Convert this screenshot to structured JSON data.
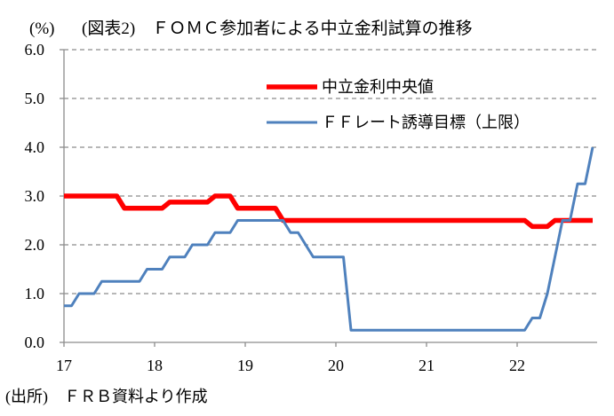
{
  "chart_data": {
    "type": "line",
    "title": "(図表2)　ＦＯＭＣ参加者による中立金利試算の推移",
    "ylabel": "(%)",
    "ylim": [
      0,
      6
    ],
    "yticks": [
      "0.0",
      "1.0",
      "2.0",
      "3.0",
      "4.0",
      "5.0",
      "6.0"
    ],
    "xticks": [
      "17",
      "18",
      "19",
      "20",
      "21",
      "22"
    ],
    "grid": true,
    "legend": "top-center",
    "x": [
      "2017-01",
      "2017-02",
      "2017-03",
      "2017-04",
      "2017-05",
      "2017-06",
      "2017-07",
      "2017-08",
      "2017-09",
      "2017-10",
      "2017-11",
      "2017-12",
      "2018-01",
      "2018-02",
      "2018-03",
      "2018-04",
      "2018-05",
      "2018-06",
      "2018-07",
      "2018-08",
      "2018-09",
      "2018-10",
      "2018-11",
      "2018-12",
      "2019-01",
      "2019-02",
      "2019-03",
      "2019-04",
      "2019-05",
      "2019-06",
      "2019-07",
      "2019-08",
      "2019-09",
      "2019-10",
      "2019-11",
      "2019-12",
      "2020-01",
      "2020-02",
      "2020-03",
      "2020-04",
      "2020-05",
      "2020-06",
      "2020-07",
      "2020-08",
      "2020-09",
      "2020-10",
      "2020-11",
      "2020-12",
      "2021-01",
      "2021-02",
      "2021-03",
      "2021-04",
      "2021-05",
      "2021-06",
      "2021-07",
      "2021-08",
      "2021-09",
      "2021-10",
      "2021-11",
      "2021-12",
      "2022-01",
      "2022-02",
      "2022-03",
      "2022-04",
      "2022-05",
      "2022-06",
      "2022-07",
      "2022-08",
      "2022-09",
      "2022-10",
      "2022-11"
    ],
    "series": [
      {
        "name": "中立金利中央値",
        "color": "#FF0000",
        "values": [
          3.0,
          3.0,
          3.0,
          3.0,
          3.0,
          3.0,
          3.0,
          3.0,
          2.75,
          2.75,
          2.75,
          2.75,
          2.75,
          2.75,
          2.875,
          2.875,
          2.875,
          2.875,
          2.875,
          2.875,
          3.0,
          3.0,
          3.0,
          2.75,
          2.75,
          2.75,
          2.75,
          2.75,
          2.75,
          2.5,
          2.5,
          2.5,
          2.5,
          2.5,
          2.5,
          2.5,
          2.5,
          2.5,
          2.5,
          2.5,
          2.5,
          2.5,
          2.5,
          2.5,
          2.5,
          2.5,
          2.5,
          2.5,
          2.5,
          2.5,
          2.5,
          2.5,
          2.5,
          2.5,
          2.5,
          2.5,
          2.5,
          2.5,
          2.5,
          2.5,
          2.5,
          2.5,
          2.375,
          2.375,
          2.375,
          2.5,
          2.5,
          2.5,
          2.5,
          2.5,
          2.5
        ]
      },
      {
        "name": "ＦＦレート誘導目標（上限）",
        "color": "#4F81BD",
        "values": [
          0.75,
          0.75,
          1.0,
          1.0,
          1.0,
          1.25,
          1.25,
          1.25,
          1.25,
          1.25,
          1.25,
          1.5,
          1.5,
          1.5,
          1.75,
          1.75,
          1.75,
          2.0,
          2.0,
          2.0,
          2.25,
          2.25,
          2.25,
          2.5,
          2.5,
          2.5,
          2.5,
          2.5,
          2.5,
          2.5,
          2.25,
          2.25,
          2.0,
          1.75,
          1.75,
          1.75,
          1.75,
          1.75,
          0.25,
          0.25,
          0.25,
          0.25,
          0.25,
          0.25,
          0.25,
          0.25,
          0.25,
          0.25,
          0.25,
          0.25,
          0.25,
          0.25,
          0.25,
          0.25,
          0.25,
          0.25,
          0.25,
          0.25,
          0.25,
          0.25,
          0.25,
          0.25,
          0.5,
          0.5,
          1.0,
          1.75,
          2.5,
          2.5,
          3.25,
          3.25,
          4.0
        ]
      }
    ]
  },
  "footnote": "(出所)　ＦＲＢ資料より作成"
}
